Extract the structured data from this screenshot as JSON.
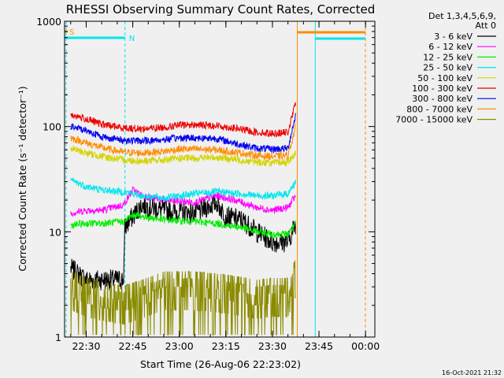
{
  "chart_data": {
    "type": "line",
    "title": "RHESSI Observing Summary Count Rates, Corrected",
    "xlabel": "Start Time (26-Aug-06 22:23:02)",
    "ylabel": "Corrected Count Rate (s⁻¹ detector⁻¹)",
    "y_scale": "log",
    "ylim": [
      1,
      1000
    ],
    "xlim": [
      "22:23:02",
      "00:03:00"
    ],
    "x_ticks": [
      "22:30",
      "22:45",
      "23:00",
      "23:15",
      "23:30",
      "23:45",
      "00:00"
    ],
    "y_ticks": [
      "1",
      "10",
      "100",
      "1000"
    ],
    "legend_header": [
      "Det 1,3,4,5,6,9,",
      "Att 0"
    ],
    "legend_position": "top-right",
    "timestamp": "16-Oct-2021 21:32",
    "flags": [
      {
        "label": "S",
        "color": "#ff8c00",
        "start": "22:23:02",
        "end": "22:24:00"
      },
      {
        "label": "N",
        "color": "#00e5ee",
        "start": "22:23:02",
        "end": "22:42:30"
      }
    ],
    "series": [
      {
        "name": "3 - 6 keV",
        "color": "#000000",
        "points": [
          [
            "22:25",
            4.5
          ],
          [
            "22:30",
            3.5
          ],
          [
            "22:35",
            3.5
          ],
          [
            "22:42",
            3.5
          ],
          [
            "22:42.5",
            11
          ],
          [
            "22:45",
            14
          ],
          [
            "22:48",
            18
          ],
          [
            "22:55",
            16
          ],
          [
            "23:05",
            15
          ],
          [
            "23:12",
            19
          ],
          [
            "23:15",
            14
          ],
          [
            "23:20",
            13
          ],
          [
            "23:25",
            10
          ],
          [
            "23:30",
            8
          ],
          [
            "23:35",
            8
          ],
          [
            "23:37.5",
            12
          ]
        ]
      },
      {
        "name": "6 - 12 keV",
        "color": "#ff00ff",
        "points": [
          [
            "22:25",
            15
          ],
          [
            "22:30",
            16
          ],
          [
            "22:35",
            16
          ],
          [
            "22:42",
            18
          ],
          [
            "22:45",
            25
          ],
          [
            "22:48",
            22
          ],
          [
            "22:55",
            20
          ],
          [
            "23:05",
            19
          ],
          [
            "23:12",
            22
          ],
          [
            "23:18",
            20
          ],
          [
            "23:25",
            17
          ],
          [
            "23:30",
            16
          ],
          [
            "23:35",
            17
          ],
          [
            "23:37.5",
            22
          ]
        ]
      },
      {
        "name": "12 - 25 keV",
        "color": "#00ee00",
        "points": [
          [
            "22:25",
            11.5
          ],
          [
            "22:30",
            12
          ],
          [
            "22:35",
            12
          ],
          [
            "22:42",
            12.5
          ],
          [
            "22:45",
            14.5
          ],
          [
            "22:55",
            13
          ],
          [
            "23:05",
            12.5
          ],
          [
            "23:12",
            12
          ],
          [
            "23:20",
            11
          ],
          [
            "23:25",
            10
          ],
          [
            "23:30",
            9.5
          ],
          [
            "23:35",
            9.5
          ],
          [
            "23:37.5",
            12
          ]
        ]
      },
      {
        "name": "25 - 50 keV",
        "color": "#00e5ee",
        "points": [
          [
            "22:25",
            31
          ],
          [
            "22:30",
            27
          ],
          [
            "22:35",
            25
          ],
          [
            "22:42",
            24
          ],
          [
            "22:48",
            22
          ],
          [
            "22:55",
            21
          ],
          [
            "23:00",
            22
          ],
          [
            "23:05",
            23
          ],
          [
            "23:12",
            24
          ],
          [
            "23:20",
            23
          ],
          [
            "23:25",
            22
          ],
          [
            "23:30",
            22
          ],
          [
            "23:35",
            23
          ],
          [
            "23:37.5",
            30
          ]
        ]
      },
      {
        "name": "50 - 100 keV",
        "color": "#d4d400",
        "points": [
          [
            "22:25",
            62
          ],
          [
            "22:30",
            56
          ],
          [
            "22:35",
            52
          ],
          [
            "22:42",
            48
          ],
          [
            "22:48",
            47
          ],
          [
            "22:55",
            48
          ],
          [
            "23:00",
            50
          ],
          [
            "23:05",
            50
          ],
          [
            "23:12",
            51
          ],
          [
            "23:20",
            48
          ],
          [
            "23:25",
            46
          ],
          [
            "23:30",
            45
          ],
          [
            "23:35",
            46
          ],
          [
            "23:37.5",
            55
          ]
        ]
      },
      {
        "name": "100 - 300 keV",
        "color": "#ee0000",
        "points": [
          [
            "22:25",
            130
          ],
          [
            "22:30",
            118
          ],
          [
            "22:35",
            105
          ],
          [
            "22:42",
            97
          ],
          [
            "22:48",
            95
          ],
          [
            "22:55",
            98
          ],
          [
            "23:00",
            103
          ],
          [
            "23:05",
            104
          ],
          [
            "23:12",
            102
          ],
          [
            "23:20",
            94
          ],
          [
            "23:25",
            88
          ],
          [
            "23:30",
            86
          ],
          [
            "23:35",
            88
          ],
          [
            "23:37.5",
            170
          ]
        ]
      },
      {
        "name": "300 - 800 keV",
        "color": "#0000ee",
        "points": [
          [
            "22:25",
            100
          ],
          [
            "22:30",
            92
          ],
          [
            "22:35",
            80
          ],
          [
            "22:42",
            74
          ],
          [
            "22:48",
            73
          ],
          [
            "22:55",
            75
          ],
          [
            "23:00",
            78
          ],
          [
            "23:05",
            78
          ],
          [
            "23:12",
            77
          ],
          [
            "23:20",
            67
          ],
          [
            "23:25",
            62
          ],
          [
            "23:30",
            61
          ],
          [
            "23:35",
            62
          ],
          [
            "23:37.5",
            130
          ]
        ]
      },
      {
        "name": "800 - 7000 keV",
        "color": "#ff8c00",
        "points": [
          [
            "22:25",
            78
          ],
          [
            "22:30",
            70
          ],
          [
            "22:35",
            63
          ],
          [
            "22:42",
            57
          ],
          [
            "22:48",
            56
          ],
          [
            "22:55",
            58
          ],
          [
            "23:00",
            61
          ],
          [
            "23:05",
            61
          ],
          [
            "23:12",
            60
          ],
          [
            "23:20",
            56
          ],
          [
            "23:25",
            53
          ],
          [
            "23:30",
            52
          ],
          [
            "23:35",
            53
          ],
          [
            "23:37.5",
            100
          ]
        ]
      },
      {
        "name": "7000 - 15000 keV",
        "color": "#8b8b00",
        "points": [
          [
            "22:25",
            3.0
          ],
          [
            "22:30",
            2.6
          ],
          [
            "22:35",
            2.4
          ],
          [
            "22:42",
            2.2
          ],
          [
            "22:48",
            2.5
          ],
          [
            "22:55",
            3.0
          ],
          [
            "23:05",
            3.0
          ],
          [
            "23:15",
            2.8
          ],
          [
            "23:25",
            2.5
          ],
          [
            "23:30",
            2.6
          ],
          [
            "23:35",
            2.6
          ],
          [
            "23:37.5",
            4
          ]
        ]
      }
    ]
  }
}
